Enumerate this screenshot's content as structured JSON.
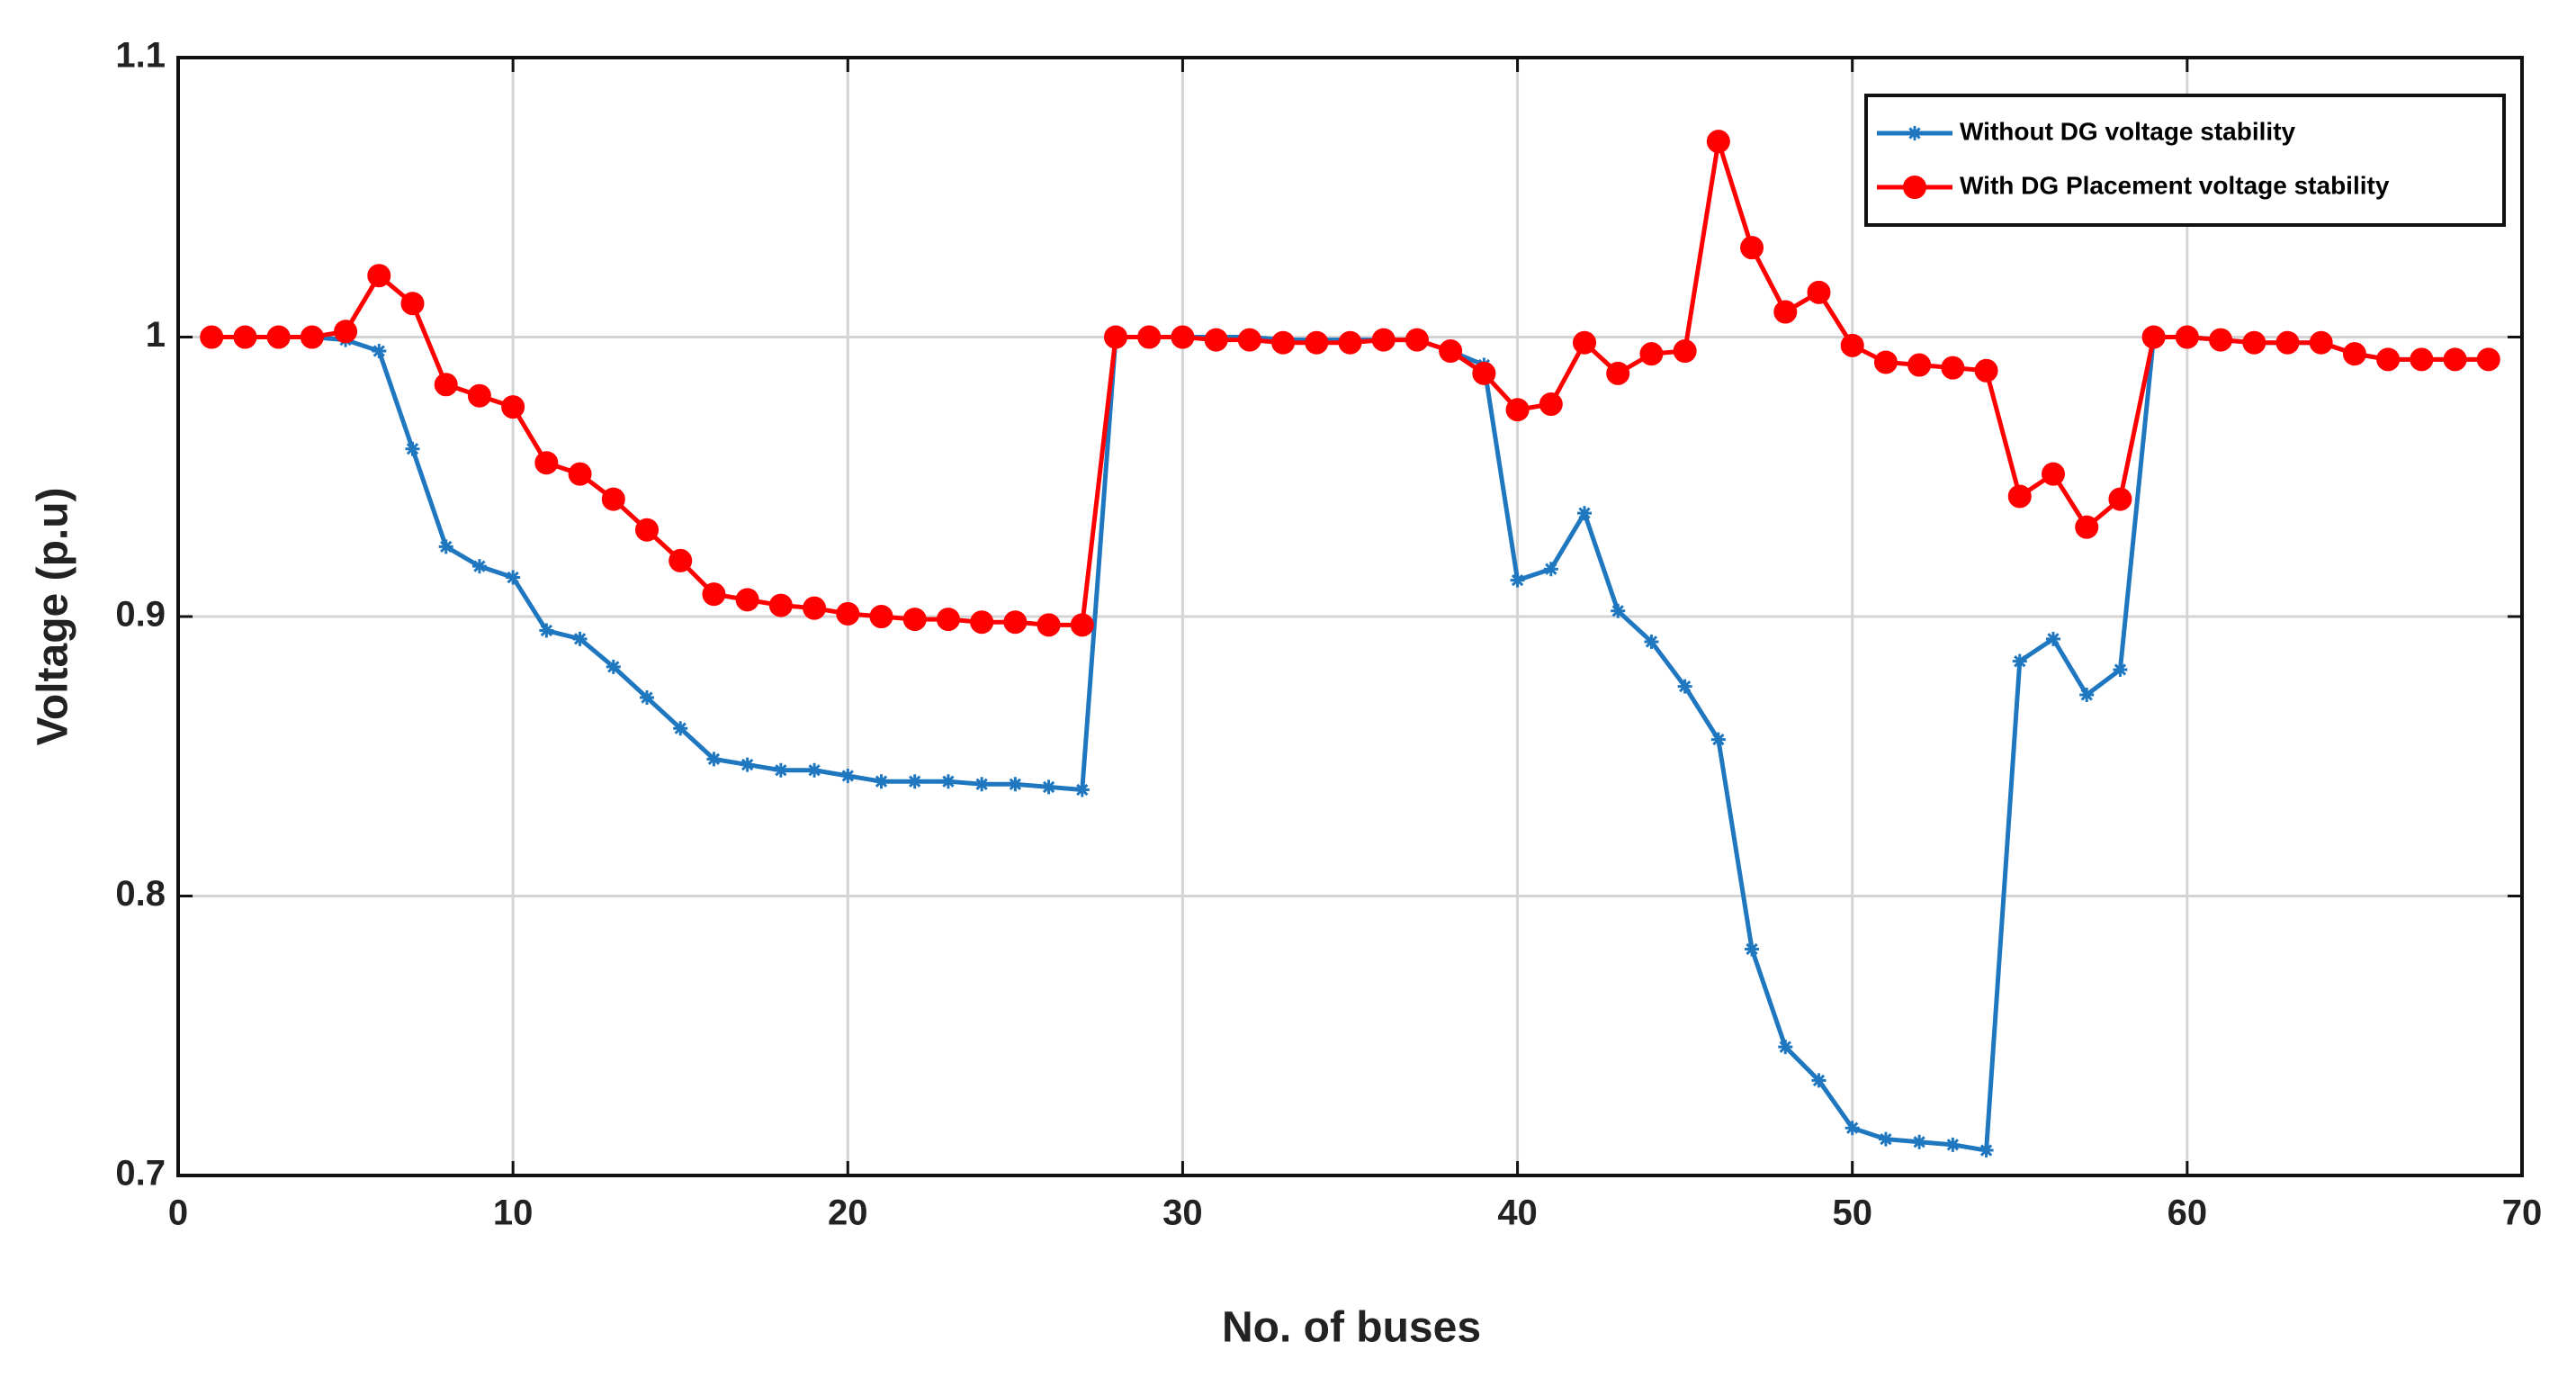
{
  "chart_data": {
    "type": "line",
    "xlabel": "No. of buses",
    "ylabel": "Voltage (p.u)",
    "x": [
      1,
      2,
      3,
      4,
      5,
      6,
      7,
      8,
      9,
      10,
      11,
      12,
      13,
      14,
      15,
      16,
      17,
      18,
      19,
      20,
      21,
      22,
      23,
      24,
      25,
      26,
      27,
      28,
      29,
      30,
      31,
      32,
      33,
      34,
      35,
      36,
      37,
      38,
      39,
      40,
      41,
      42,
      43,
      44,
      45,
      46,
      47,
      48,
      49,
      50,
      51,
      52,
      53,
      54,
      55,
      56,
      57,
      58,
      59,
      60,
      61,
      62,
      63,
      64,
      65,
      66,
      67,
      68,
      69
    ],
    "series": [
      {
        "name": "Without DG voltage stability",
        "color": "#1f77c0",
        "marker": "star",
        "values": [
          1.0,
          1.0,
          1.0,
          1.0,
          0.999,
          0.995,
          0.96,
          0.925,
          0.918,
          0.914,
          0.895,
          0.892,
          0.882,
          0.871,
          0.86,
          0.849,
          0.847,
          0.845,
          0.845,
          0.843,
          0.841,
          0.841,
          0.841,
          0.84,
          0.84,
          0.839,
          0.838,
          1.0,
          1.0,
          1.0,
          1.0,
          1.0,
          0.999,
          0.999,
          0.999,
          0.999,
          0.999,
          0.995,
          0.99,
          0.913,
          0.917,
          0.937,
          0.902,
          0.891,
          0.875,
          0.856,
          0.781,
          0.746,
          0.734,
          0.717,
          0.713,
          0.712,
          0.711,
          0.709,
          0.884,
          0.892,
          0.872,
          0.881,
          1.0,
          1.0,
          0.999,
          0.998,
          0.998,
          0.998,
          0.994,
          0.992,
          0.992,
          0.992,
          0.992
        ]
      },
      {
        "name": "With DG Placement voltage stability",
        "color": "#ff0000",
        "marker": "circle",
        "values": [
          1.0,
          1.0,
          1.0,
          1.0,
          1.002,
          1.022,
          1.012,
          0.983,
          0.979,
          0.975,
          0.955,
          0.951,
          0.942,
          0.931,
          0.92,
          0.908,
          0.906,
          0.904,
          0.903,
          0.901,
          0.9,
          0.899,
          0.899,
          0.898,
          0.898,
          0.897,
          0.897,
          1.0,
          1.0,
          1.0,
          0.999,
          0.999,
          0.998,
          0.998,
          0.998,
          0.999,
          0.999,
          0.995,
          0.987,
          0.974,
          0.976,
          0.998,
          0.987,
          0.994,
          0.995,
          1.07,
          1.032,
          1.009,
          1.016,
          0.997,
          0.991,
          0.99,
          0.989,
          0.988,
          0.943,
          0.951,
          0.932,
          0.942,
          1.0,
          1.0,
          0.999,
          0.998,
          0.998,
          0.998,
          0.994,
          0.992,
          0.992,
          0.992,
          0.992
        ]
      }
    ],
    "xlim": [
      0,
      70
    ],
    "xticks": [
      0,
      10,
      20,
      30,
      40,
      50,
      60,
      70
    ],
    "ylim": [
      0.7,
      1.1
    ],
    "yticks": [
      0.7,
      0.8,
      0.9,
      1,
      1.1
    ],
    "grid": true,
    "legend": "upper right"
  }
}
